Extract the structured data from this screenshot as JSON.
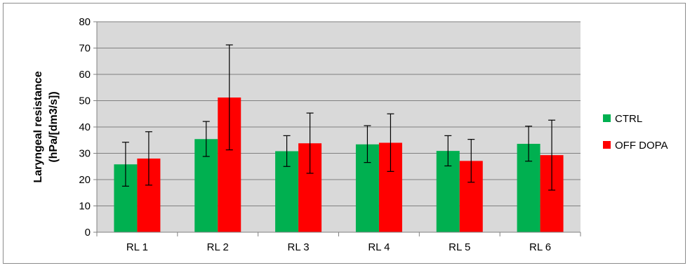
{
  "chart_data": {
    "type": "bar",
    "title": "",
    "xlabel": "",
    "ylabel_lines": [
      "Laryngeal resistance",
      "(hPa/[dm3/s])"
    ],
    "ylim": [
      0,
      80
    ],
    "yticks": [
      0,
      10,
      20,
      30,
      40,
      50,
      60,
      70,
      80
    ],
    "grid": true,
    "legend_position": "right",
    "categories": [
      "RL 1",
      "RL 2",
      "RL 3",
      "RL 4",
      "RL 5",
      "RL 6"
    ],
    "series": [
      {
        "name": "CTRL",
        "color": "#00b050",
        "values": [
          25.8,
          35.4,
          30.8,
          33.4,
          30.9,
          33.6
        ],
        "error_low": [
          17.5,
          28.8,
          25.0,
          26.5,
          25.2,
          27.0
        ],
        "error_high": [
          34.2,
          42.1,
          36.7,
          40.5,
          36.7,
          40.3
        ]
      },
      {
        "name": "OFF DOPA",
        "color": "#ff0000",
        "values": [
          28.0,
          51.2,
          33.8,
          34.0,
          27.1,
          29.3
        ],
        "error_low": [
          17.9,
          31.3,
          22.4,
          23.1,
          19.0,
          16.0
        ],
        "error_high": [
          38.2,
          71.2,
          45.3,
          45.0,
          35.3,
          42.6
        ]
      }
    ],
    "plot_background": "#d9d9d9",
    "gridline_color": "#808080",
    "error_bar_color": "#000000"
  }
}
